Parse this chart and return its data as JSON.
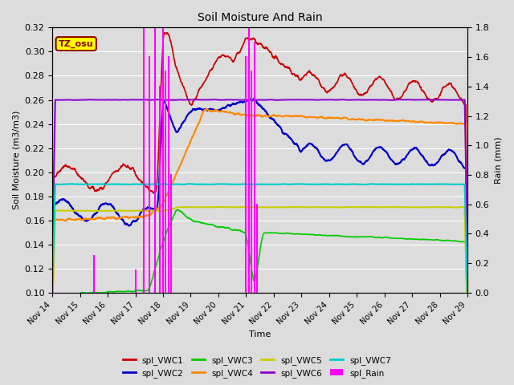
{
  "title": "Soil Moisture And Rain",
  "xlabel": "Time",
  "ylabel_left": "Soil Moisture (m3/m3)",
  "ylabel_right": "Rain (mm)",
  "ylim_left": [
    0.1,
    0.32
  ],
  "ylim_right": [
    0.0,
    1.8
  ],
  "annotation": "TZ_osu",
  "colors": {
    "VWC1": "#cc0000",
    "VWC2": "#0000cc",
    "VWC3": "#00cc00",
    "VWC4": "#ff8800",
    "VWC5": "#cccc00",
    "VWC6": "#8800cc",
    "VWC7": "#00cccc",
    "Rain": "#ff00ff"
  },
  "bg_color": "#dcdcdc",
  "fig_bg": "#dcdcdc",
  "legend_labels": [
    "spl_VWC1",
    "spl_VWC2",
    "spl_VWC3",
    "spl_VWC4",
    "spl_VWC5",
    "spl_VWC6",
    "spl_VWC7",
    "spl_Rain"
  ]
}
